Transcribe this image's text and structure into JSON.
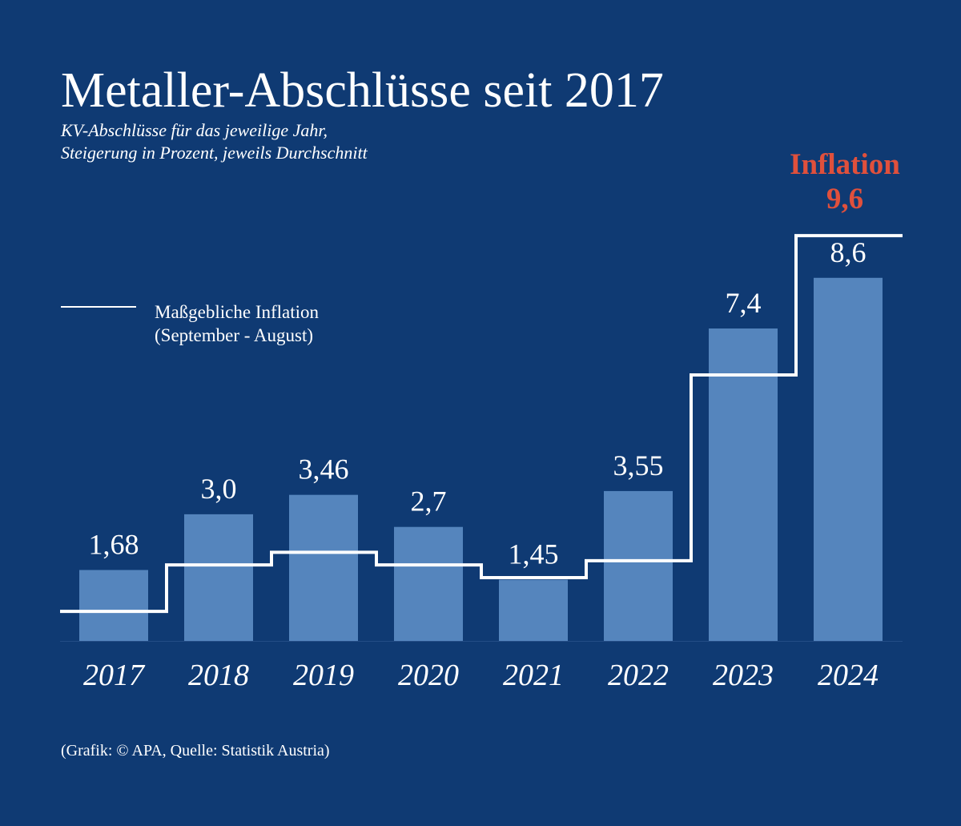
{
  "colors": {
    "background": "#0f3a73",
    "bar": "#5585bd",
    "line": "#ffffff",
    "highlight": "#e0503c",
    "text": "#ffffff"
  },
  "chart_data": {
    "type": "bar",
    "title": "Metaller-Abschlüsse seit 2017",
    "subtitle_lines": [
      "KV-Abschlüsse für das jeweilige Jahr,",
      "Steigerung in Prozent, jeweils Durchschnitt"
    ],
    "categories": [
      "2017",
      "2018",
      "2019",
      "2020",
      "2021",
      "2022",
      "2023",
      "2024"
    ],
    "values": [
      1.68,
      3.0,
      3.46,
      2.7,
      1.45,
      3.55,
      7.4,
      8.6
    ],
    "value_labels": [
      "1,68",
      "3,0",
      "3,46",
      "2,7",
      "1,45",
      "3,55",
      "7,4",
      "8,6"
    ],
    "series": [
      {
        "name": "KV-Abschluss",
        "type": "bar",
        "values": [
          1.68,
          3.0,
          3.46,
          2.7,
          1.45,
          3.55,
          7.4,
          8.6
        ]
      },
      {
        "name": "Maßgebliche Inflation (September - August)",
        "type": "step-line",
        "values": [
          0.7,
          1.8,
          2.1,
          1.8,
          1.5,
          1.9,
          6.3,
          9.6
        ]
      }
    ],
    "legend": {
      "lines": [
        "Maßgebliche Inflation",
        "(September - August)"
      ],
      "placement": "top-left"
    },
    "annotation": {
      "label": "Inflation",
      "value": "9,6"
    },
    "ylim": [
      0,
      10
    ],
    "grid": false,
    "source": "(Grafik: © APA, Quelle: Statistik Austria)"
  }
}
